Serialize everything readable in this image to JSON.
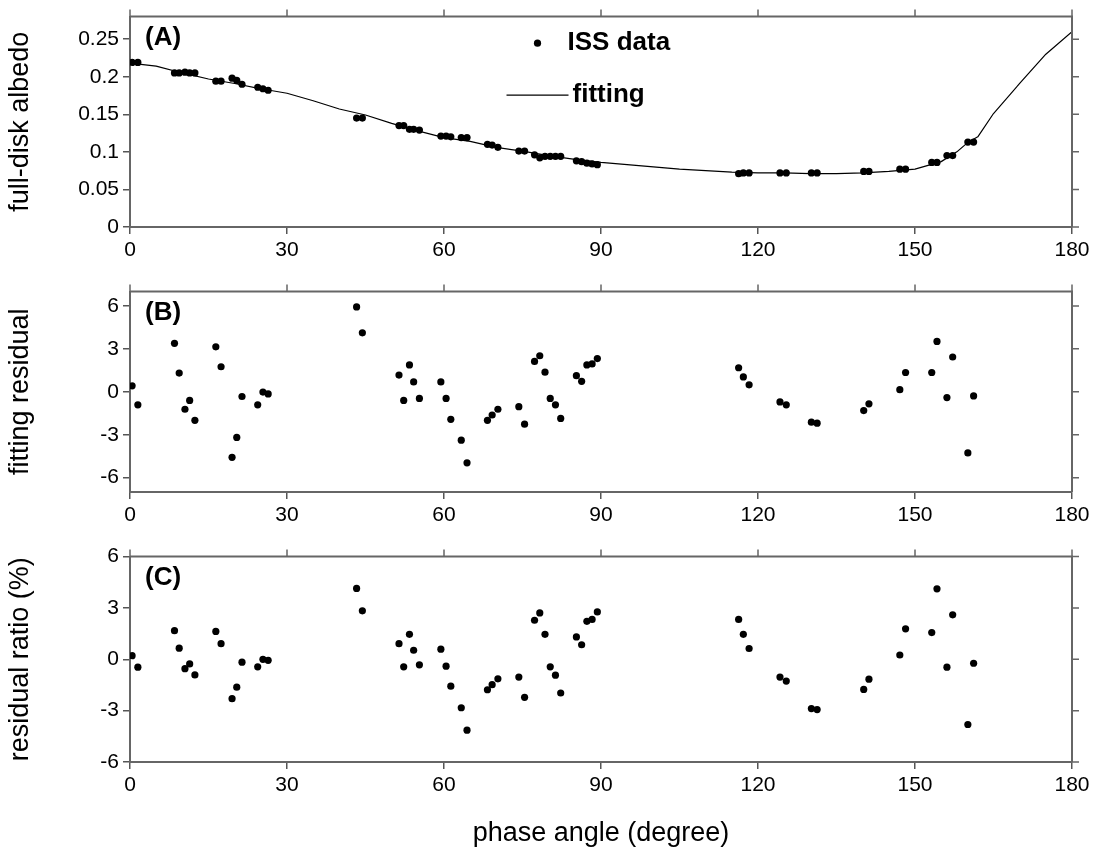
{
  "chart_data": [
    {
      "type": "scatter",
      "ylabel": "full-disk albedo",
      "annotations": [
        "(A)"
      ],
      "xlim": [
        0,
        180
      ],
      "xticks": [
        0,
        30,
        60,
        90,
        120,
        150,
        180
      ],
      "ylim": [
        0,
        0.28
      ],
      "yticks": [
        0,
        0.05,
        0.1,
        0.15,
        0.2,
        0.25
      ],
      "grid": false,
      "legend": "top",
      "marker": "circle",
      "x": [
        0.4,
        1.5,
        8.5,
        9.4,
        10.5,
        11.4,
        12.4,
        16.4,
        17.4,
        19.5,
        20.4,
        21.4,
        24.4,
        25.4,
        26.4,
        43.3,
        44.4,
        51.4,
        52.3,
        53.4,
        54.2,
        55.3,
        59.4,
        60.4,
        61.3,
        63.3,
        64.4,
        68.3,
        69.2,
        70.3,
        74.3,
        75.4,
        77.3,
        78.3,
        79.3,
        80.3,
        81.3,
        82.3,
        85.3,
        86.3,
        87.3,
        88.3,
        89.3,
        116.3,
        117.2,
        118.3,
        124.2,
        125.4,
        130.2,
        131.3,
        140.2,
        141.2,
        147.1,
        148.2,
        153.2,
        154.2,
        156.1,
        157.2,
        160.1,
        161.2
      ],
      "series": [
        {
          "name": "ISS data",
          "color": "#000000",
          "values": [
            0.219,
            0.219,
            0.205,
            0.205,
            0.206,
            0.205,
            0.205,
            0.194,
            0.194,
            0.198,
            0.195,
            0.19,
            0.186,
            0.184,
            0.182,
            0.145,
            0.145,
            0.135,
            0.135,
            0.13,
            0.13,
            0.129,
            0.121,
            0.121,
            0.12,
            0.119,
            0.119,
            0.11,
            0.109,
            0.106,
            0.101,
            0.101,
            0.096,
            0.092,
            0.094,
            0.094,
            0.094,
            0.094,
            0.088,
            0.087,
            0.085,
            0.084,
            0.083,
            0.071,
            0.072,
            0.072,
            0.072,
            0.072,
            0.072,
            0.072,
            0.074,
            0.074,
            0.077,
            0.077,
            0.086,
            0.086,
            0.095,
            0.095,
            0.113,
            0.113
          ]
        },
        {
          "name": "fitting",
          "type": "line",
          "marker": "none",
          "line_style": "solid",
          "color": "#000000",
          "x": [
            0,
            5,
            10,
            15,
            20,
            25,
            30,
            35,
            40,
            45,
            50,
            55,
            60,
            65,
            70,
            75,
            80,
            85,
            90,
            100,
            105,
            110,
            115,
            120,
            125,
            130,
            135,
            140,
            145,
            150,
            155,
            158,
            160,
            162,
            165,
            170,
            175,
            180
          ],
          "values": [
            0.218,
            0.214,
            0.205,
            0.197,
            0.191,
            0.184,
            0.178,
            0.168,
            0.157,
            0.149,
            0.138,
            0.128,
            0.119,
            0.114,
            0.106,
            0.101,
            0.095,
            0.09,
            0.086,
            0.08,
            0.077,
            0.075,
            0.073,
            0.072,
            0.072,
            0.071,
            0.071,
            0.072,
            0.074,
            0.077,
            0.087,
            0.1,
            0.112,
            0.12,
            0.151,
            0.191,
            0.23,
            0.26
          ]
        }
      ]
    },
    {
      "type": "scatter",
      "ylabel": "fitting residual",
      "annotations": [
        "(B)"
      ],
      "xlim": [
        0,
        180
      ],
      "xticks": [
        0,
        30,
        60,
        90,
        120,
        150,
        180
      ],
      "ylim": [
        -7,
        7
      ],
      "yticks": [
        -6,
        -3,
        0,
        3,
        6
      ],
      "grid": false,
      "marker": "circle",
      "x": [
        0.4,
        1.5,
        8.5,
        9.4,
        10.5,
        11.4,
        12.4,
        16.4,
        17.4,
        19.5,
        20.4,
        21.4,
        24.4,
        25.4,
        26.4,
        43.3,
        44.4,
        51.4,
        52.3,
        53.4,
        54.2,
        55.3,
        59.4,
        60.4,
        61.3,
        63.3,
        64.4,
        68.3,
        69.2,
        70.3,
        74.3,
        75.4,
        77.3,
        78.3,
        79.3,
        80.3,
        81.3,
        82.3,
        85.3,
        86.3,
        87.3,
        88.3,
        89.3,
        116.3,
        117.2,
        118.3,
        124.2,
        125.4,
        130.2,
        131.3,
        140.2,
        141.2,
        147.1,
        148.2,
        153.2,
        154.2,
        156.1,
        157.2,
        160.1,
        161.2
      ],
      "series": [
        {
          "color": "#000000",
          "values": [
            0.42,
            -0.91,
            3.39,
            1.31,
            -1.22,
            -0.6,
            -1.99,
            3.14,
            1.75,
            -4.58,
            -3.19,
            -0.33,
            -0.91,
            -0.02,
            -0.15,
            5.93,
            4.12,
            1.17,
            -0.6,
            1.88,
            0.69,
            -0.46,
            0.69,
            -0.46,
            -1.92,
            -3.38,
            -4.96,
            -1.99,
            -1.62,
            -1.22,
            -1.04,
            -2.26,
            2.12,
            2.52,
            1.37,
            -0.46,
            -0.91,
            -1.86,
            1.13,
            0.73,
            1.88,
            1.95,
            2.32,
            1.68,
            1.04,
            0.49,
            -0.71,
            -0.91,
            -2.12,
            -2.19,
            -1.31,
            -0.84,
            0.15,
            1.35,
            1.35,
            3.52,
            -0.4,
            2.43,
            -4.27,
            -0.29
          ]
        }
      ]
    },
    {
      "type": "scatter",
      "xlabel": "phase angle (degree)",
      "ylabel": "residual ratio (%)",
      "annotations": [
        "(C)"
      ],
      "xlim": [
        0,
        180
      ],
      "xticks": [
        0,
        30,
        60,
        90,
        120,
        150,
        180
      ],
      "ylim": [
        -6,
        6
      ],
      "yticks": [
        -6,
        -3,
        0,
        3,
        6
      ],
      "grid": false,
      "marker": "circle",
      "x": [
        0.4,
        1.5,
        8.5,
        9.4,
        10.5,
        11.4,
        12.4,
        16.4,
        17.4,
        19.5,
        20.4,
        21.4,
        24.4,
        25.4,
        26.4,
        43.3,
        44.4,
        51.4,
        52.3,
        53.4,
        54.2,
        55.3,
        59.4,
        60.4,
        61.3,
        63.3,
        64.4,
        68.3,
        69.2,
        70.3,
        74.3,
        75.4,
        77.3,
        78.3,
        79.3,
        80.3,
        81.3,
        82.3,
        85.3,
        86.3,
        87.3,
        88.3,
        89.3,
        116.3,
        117.2,
        118.3,
        124.2,
        125.4,
        130.2,
        131.3,
        140.2,
        141.2,
        147.1,
        148.2,
        153.2,
        154.2,
        156.1,
        157.2,
        160.1,
        161.2
      ],
      "series": [
        {
          "color": "#000000",
          "values": [
            0.21,
            -0.46,
            1.67,
            0.65,
            -0.55,
            -0.27,
            -0.91,
            1.63,
            0.91,
            -2.3,
            -1.63,
            -0.17,
            -0.44,
            0,
            -0.06,
            4.14,
            2.83,
            0.91,
            -0.44,
            1.46,
            0.53,
            -0.32,
            0.59,
            -0.4,
            -1.57,
            -2.83,
            -4.14,
            -1.78,
            -1.48,
            -1.14,
            -1.04,
            -2.22,
            2.28,
            2.71,
            1.46,
            -0.44,
            -0.93,
            -1.97,
            1.31,
            0.85,
            2.22,
            2.33,
            2.77,
            2.33,
            1.46,
            0.63,
            -1.04,
            -1.27,
            -2.88,
            -2.94,
            -1.76,
            -1.16,
            0.25,
            1.78,
            1.56,
            4.12,
            -0.46,
            2.6,
            -3.81,
            -0.23
          ]
        }
      ]
    }
  ]
}
